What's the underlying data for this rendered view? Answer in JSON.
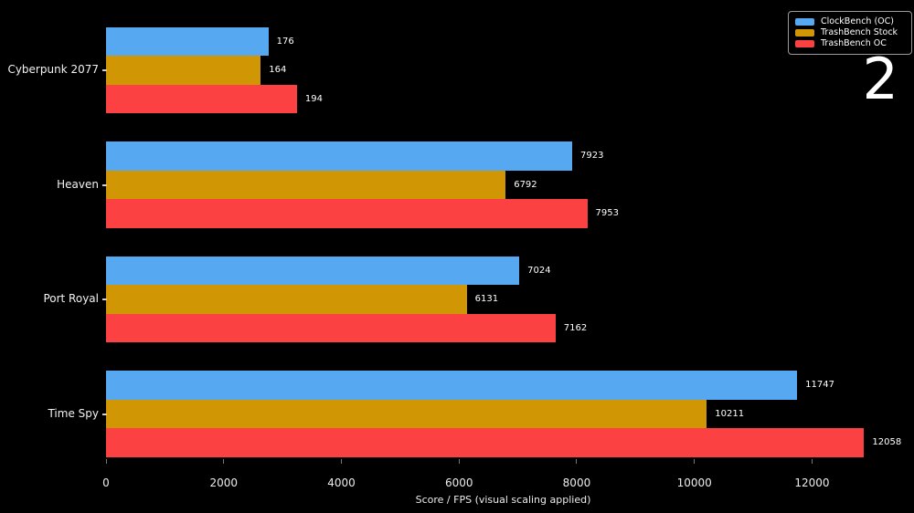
{
  "slide": {
    "number": "2"
  },
  "chart_data": {
    "type": "bar",
    "orientation": "horizontal",
    "xlabel": "Score / FPS (visual scaling applied)",
    "categories": [
      "Cyberpunk 2077",
      "Heaven",
      "Port Royal",
      "Time Spy"
    ],
    "series": [
      {
        "name": "ClockBench (OC)",
        "color": "#56a8f0",
        "values": [
          176,
          7923,
          7024,
          11747
        ],
        "visual_units": [
          2760,
          7923,
          7024,
          11747
        ]
      },
      {
        "name": "TrashBench Stock",
        "color": "#d19603",
        "values": [
          164,
          6792,
          6131,
          10211
        ],
        "visual_units": [
          2630,
          6792,
          6131,
          10211
        ]
      },
      {
        "name": "TrashBench OC",
        "color": "#fb4141",
        "values": [
          194,
          7953,
          7162,
          12058
        ],
        "visual_units": [
          3245,
          8180,
          7640,
          12885
        ]
      }
    ],
    "xticks": [
      0,
      2000,
      4000,
      6000,
      8000,
      10000,
      12000
    ],
    "xlim": [
      0,
      13500
    ],
    "legend_position": "upper right",
    "grid": false,
    "background_color": "#000000",
    "text_color": "#ffffff"
  }
}
